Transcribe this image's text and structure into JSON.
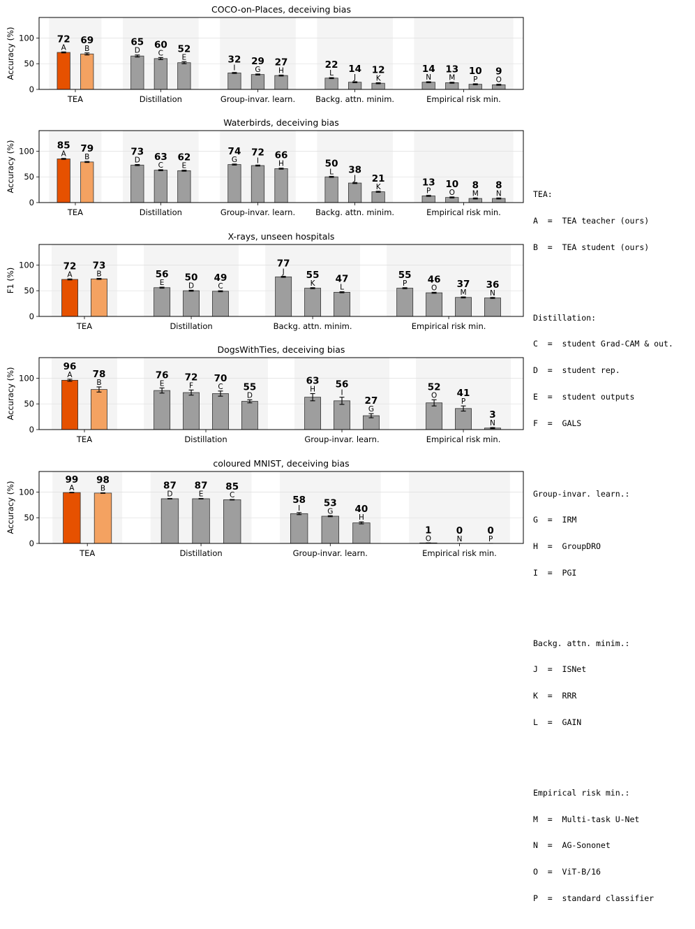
{
  "colors": {
    "teacher": "#e65100",
    "student": "#f4a261",
    "other": "#9e9e9e",
    "shade": "#eeeeee"
  },
  "chart_data": [
    {
      "type": "bar",
      "title": "COCO-on-Places, deceiving bias",
      "ylabel": "Accuracy (%)",
      "ylim": [
        0,
        140
      ],
      "yticks": [
        0,
        50,
        100
      ],
      "groups": [
        {
          "name": "TEA",
          "bars": [
            {
              "letter": "A",
              "value": 72,
              "err": 1
            },
            {
              "letter": "B",
              "value": 69,
              "err": 2
            }
          ]
        },
        {
          "name": "Distillation",
          "bars": [
            {
              "letter": "D",
              "value": 65,
              "err": 2
            },
            {
              "letter": "C",
              "value": 60,
              "err": 2
            },
            {
              "letter": "E",
              "value": 52,
              "err": 2
            }
          ]
        },
        {
          "name": "Group-invar. learn.",
          "bars": [
            {
              "letter": "I",
              "value": 32,
              "err": 1
            },
            {
              "letter": "G",
              "value": 29,
              "err": 1
            },
            {
              "letter": "H",
              "value": 27,
              "err": 1
            }
          ]
        },
        {
          "name": "Backg. attn. minim.",
          "bars": [
            {
              "letter": "L",
              "value": 22,
              "err": 1
            },
            {
              "letter": "J",
              "value": 14,
              "err": 1
            },
            {
              "letter": "K",
              "value": 12,
              "err": 1
            }
          ]
        },
        {
          "name": "Empirical risk min.",
          "bars": [
            {
              "letter": "N",
              "value": 14,
              "err": 1
            },
            {
              "letter": "M",
              "value": 13,
              "err": 1
            },
            {
              "letter": "P",
              "value": 10,
              "err": 1
            },
            {
              "letter": "O",
              "value": 9,
              "err": 1
            }
          ]
        }
      ]
    },
    {
      "type": "bar",
      "title": "Waterbirds, deceiving bias",
      "ylabel": "Accuracy (%)",
      "ylim": [
        0,
        140
      ],
      "yticks": [
        0,
        50,
        100
      ],
      "groups": [
        {
          "name": "TEA",
          "bars": [
            {
              "letter": "A",
              "value": 85,
              "err": 1
            },
            {
              "letter": "B",
              "value": 79,
              "err": 1
            }
          ]
        },
        {
          "name": "Distillation",
          "bars": [
            {
              "letter": "D",
              "value": 73,
              "err": 1
            },
            {
              "letter": "C",
              "value": 63,
              "err": 1
            },
            {
              "letter": "E",
              "value": 62,
              "err": 1
            }
          ]
        },
        {
          "name": "Group-invar. learn.",
          "bars": [
            {
              "letter": "G",
              "value": 74,
              "err": 1
            },
            {
              "letter": "I",
              "value": 72,
              "err": 1
            },
            {
              "letter": "H",
              "value": 66,
              "err": 1
            }
          ]
        },
        {
          "name": "Backg. attn. minim.",
          "bars": [
            {
              "letter": "L",
              "value": 50,
              "err": 1
            },
            {
              "letter": "J",
              "value": 38,
              "err": 1
            },
            {
              "letter": "K",
              "value": 21,
              "err": 1
            }
          ]
        },
        {
          "name": "Empirical risk min.",
          "bars": [
            {
              "letter": "P",
              "value": 13,
              "err": 1
            },
            {
              "letter": "O",
              "value": 10,
              "err": 1
            },
            {
              "letter": "M",
              "value": 8,
              "err": 1
            },
            {
              "letter": "N",
              "value": 8,
              "err": 1
            }
          ]
        }
      ]
    },
    {
      "type": "bar",
      "title": "X-rays, unseen hospitals",
      "ylabel": "F1 (%)",
      "ylim": [
        0,
        140
      ],
      "yticks": [
        0,
        50,
        100
      ],
      "groups": [
        {
          "name": "TEA",
          "bars": [
            {
              "letter": "A",
              "value": 72,
              "err": 1
            },
            {
              "letter": "B",
              "value": 73,
              "err": 1
            }
          ]
        },
        {
          "name": "Distillation",
          "bars": [
            {
              "letter": "E",
              "value": 56,
              "err": 1
            },
            {
              "letter": "D",
              "value": 50,
              "err": 1
            },
            {
              "letter": "C",
              "value": 49,
              "err": 1
            }
          ]
        },
        {
          "name": "Backg. attn. minim.",
          "bars": [
            {
              "letter": "J",
              "value": 77,
              "err": 1
            },
            {
              "letter": "K",
              "value": 55,
              "err": 1
            },
            {
              "letter": "L",
              "value": 47,
              "err": 1
            }
          ]
        },
        {
          "name": "Empirical risk min.",
          "bars": [
            {
              "letter": "P",
              "value": 55,
              "err": 1
            },
            {
              "letter": "O",
              "value": 46,
              "err": 1
            },
            {
              "letter": "M",
              "value": 37,
              "err": 1
            },
            {
              "letter": "N",
              "value": 36,
              "err": 1
            }
          ]
        }
      ]
    },
    {
      "type": "bar",
      "title": "DogsWithTies, deceiving bias",
      "ylabel": "Accuracy (%)",
      "ylim": [
        0,
        140
      ],
      "yticks": [
        0,
        50,
        100
      ],
      "groups": [
        {
          "name": "TEA",
          "bars": [
            {
              "letter": "A",
              "value": 96,
              "err": 2
            },
            {
              "letter": "B",
              "value": 78,
              "err": 5
            }
          ]
        },
        {
          "name": "Distillation",
          "bars": [
            {
              "letter": "E",
              "value": 76,
              "err": 5
            },
            {
              "letter": "F",
              "value": 72,
              "err": 5
            },
            {
              "letter": "C",
              "value": 70,
              "err": 5
            },
            {
              "letter": "D",
              "value": 55,
              "err": 3
            }
          ]
        },
        {
          "name": "Group-invar. learn.",
          "bars": [
            {
              "letter": "H",
              "value": 63,
              "err": 7
            },
            {
              "letter": "I",
              "value": 56,
              "err": 7
            },
            {
              "letter": "G",
              "value": 27,
              "err": 4
            }
          ]
        },
        {
          "name": "Empirical risk min.",
          "bars": [
            {
              "letter": "O",
              "value": 52,
              "err": 6
            },
            {
              "letter": "P",
              "value": 41,
              "err": 5
            },
            {
              "letter": "N",
              "value": 3,
              "err": 1
            }
          ]
        }
      ]
    },
    {
      "type": "bar",
      "title": "coloured MNIST, deceiving bias",
      "ylabel": "Accuracy (%)",
      "ylim": [
        0,
        140
      ],
      "yticks": [
        0,
        50,
        100
      ],
      "groups": [
        {
          "name": "TEA",
          "bars": [
            {
              "letter": "A",
              "value": 99,
              "err": 0.5
            },
            {
              "letter": "B",
              "value": 98,
              "err": 0.5
            }
          ]
        },
        {
          "name": "Distillation",
          "bars": [
            {
              "letter": "D",
              "value": 87,
              "err": 0.5
            },
            {
              "letter": "E",
              "value": 87,
              "err": 0.5
            },
            {
              "letter": "C",
              "value": 85,
              "err": 0.5
            }
          ]
        },
        {
          "name": "Group-invar. learn.",
          "bars": [
            {
              "letter": "I",
              "value": 58,
              "err": 2
            },
            {
              "letter": "G",
              "value": 53,
              "err": 1
            },
            {
              "letter": "H",
              "value": 40,
              "err": 2
            }
          ]
        },
        {
          "name": "Empirical risk min.",
          "bars": [
            {
              "letter": "O",
              "value": 1,
              "err": 0
            },
            {
              "letter": "N",
              "value": 0,
              "err": 0
            },
            {
              "letter": "P",
              "value": 0,
              "err": 0
            }
          ]
        }
      ]
    }
  ],
  "legend": [
    {
      "title": "TEA:",
      "items": [
        "A  =  TEA teacher (ours)",
        "B  =  TEA student (ours)"
      ]
    },
    {
      "title": "Distillation:",
      "items": [
        "C  =  student Grad-CAM & out.",
        "D  =  student rep.",
        "E  =  student outputs",
        "F  =  GALS"
      ]
    },
    {
      "title": "Group-invar. learn.:",
      "items": [
        "G  =  IRM",
        "H  =  GroupDRO",
        "I  =  PGI"
      ]
    },
    {
      "title": "Backg. attn. minim.:",
      "items": [
        "J  =  ISNet",
        "K  =  RRR",
        "L  =  GAIN"
      ]
    },
    {
      "title": "Empirical risk min.:",
      "items": [
        "M  =  Multi-task U-Net",
        "N  =  AG-Sononet",
        "O  =  ViT-B/16",
        "P  =  standard classifier"
      ]
    }
  ]
}
